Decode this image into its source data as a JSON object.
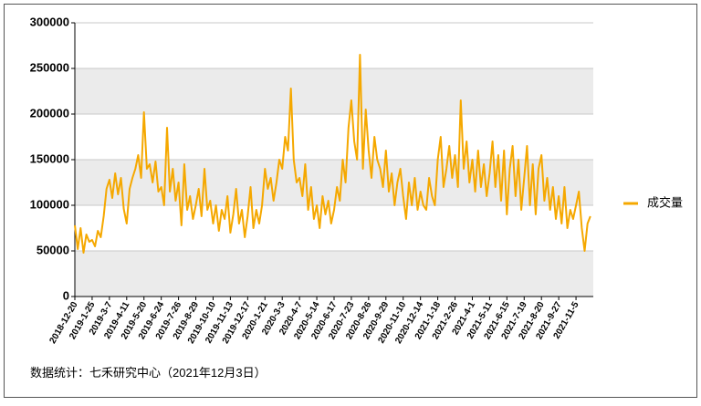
{
  "chart_data": {
    "type": "line",
    "categories": [
      "2018-12-20",
      null,
      null,
      null,
      null,
      null,
      "2019-1-25",
      null,
      null,
      null,
      null,
      null,
      "2019-3-7",
      null,
      null,
      null,
      null,
      null,
      "2019-4-11",
      null,
      null,
      null,
      null,
      null,
      "2019-5-20",
      null,
      null,
      null,
      null,
      null,
      "2019-6-24",
      null,
      null,
      null,
      null,
      null,
      "2019-7-26",
      null,
      null,
      null,
      null,
      null,
      "2019-8-29",
      null,
      null,
      null,
      null,
      null,
      "2019-10-10",
      null,
      null,
      null,
      null,
      null,
      "2019-11-13",
      null,
      null,
      null,
      null,
      null,
      "2019-12-17",
      null,
      null,
      null,
      null,
      null,
      "2020-1-21",
      null,
      null,
      null,
      null,
      null,
      "2020-3-3",
      null,
      null,
      null,
      null,
      null,
      "2020-4-7",
      null,
      null,
      null,
      null,
      null,
      "2020-5-14",
      null,
      null,
      null,
      null,
      null,
      "2020-6-17",
      null,
      null,
      null,
      null,
      null,
      "2020-7-23",
      null,
      null,
      null,
      null,
      null,
      "2020-8-26",
      null,
      null,
      null,
      null,
      null,
      "2020-9-29",
      null,
      null,
      null,
      null,
      null,
      "2020-11-10",
      null,
      null,
      null,
      null,
      null,
      "2020-12-14",
      null,
      null,
      null,
      null,
      null,
      "2021-1-18",
      null,
      null,
      null,
      null,
      null,
      "2021-2-26",
      null,
      null,
      null,
      null,
      null,
      "2021-4-1",
      null,
      null,
      null,
      null,
      null,
      "2021-5-11",
      null,
      null,
      null,
      null,
      null,
      "2021-6-15",
      null,
      null,
      null,
      null,
      null,
      "2021-7-19",
      null,
      null,
      null,
      null,
      null,
      "2021-8-20",
      null,
      null,
      null,
      null,
      null,
      "2021-9-27",
      null,
      null,
      null,
      null,
      null,
      "2021-11-5",
      null,
      null,
      null,
      null,
      null
    ],
    "series": [
      {
        "name": "成交量",
        "color": "#f5a800",
        "values": [
          78000,
          52000,
          75000,
          48000,
          68000,
          60000,
          62000,
          55000,
          72000,
          65000,
          88000,
          118000,
          128000,
          108000,
          135000,
          112000,
          130000,
          96000,
          80000,
          118000,
          130000,
          140000,
          155000,
          130000,
          202000,
          140000,
          145000,
          125000,
          148000,
          115000,
          120000,
          100000,
          185000,
          115000,
          140000,
          105000,
          125000,
          78000,
          145000,
          95000,
          110000,
          85000,
          100000,
          118000,
          88000,
          140000,
          95000,
          105000,
          80000,
          100000,
          72000,
          95000,
          85000,
          110000,
          70000,
          90000,
          118000,
          80000,
          95000,
          65000,
          88000,
          120000,
          75000,
          95000,
          80000,
          100000,
          140000,
          118000,
          130000,
          105000,
          125000,
          150000,
          140000,
          175000,
          160000,
          228000,
          150000,
          125000,
          130000,
          110000,
          145000,
          95000,
          120000,
          85000,
          100000,
          75000,
          110000,
          90000,
          105000,
          80000,
          95000,
          120000,
          105000,
          150000,
          125000,
          185000,
          215000,
          170000,
          150000,
          265000,
          140000,
          205000,
          160000,
          130000,
          175000,
          150000,
          140000,
          120000,
          160000,
          115000,
          135000,
          100000,
          125000,
          140000,
          110000,
          85000,
          125000,
          100000,
          130000,
          95000,
          115000,
          100000,
          95000,
          130000,
          110000,
          100000,
          150000,
          175000,
          120000,
          140000,
          165000,
          130000,
          155000,
          120000,
          215000,
          140000,
          170000,
          125000,
          150000,
          115000,
          160000,
          120000,
          145000,
          110000,
          135000,
          170000,
          120000,
          155000,
          105000,
          160000,
          90000,
          140000,
          165000,
          110000,
          150000,
          95000,
          130000,
          165000,
          100000,
          145000,
          90000,
          140000,
          155000,
          105000,
          130000,
          95000,
          120000,
          85000,
          110000,
          80000,
          120000,
          75000,
          95000,
          85000,
          100000,
          115000,
          75000,
          50000,
          80000,
          88000
        ]
      }
    ],
    "ylim": [
      0,
      300000
    ],
    "yticks": [
      0,
      50000,
      100000,
      150000,
      200000,
      250000,
      300000
    ],
    "grid": true,
    "legend": "right",
    "annotation": "数据统计：七禾研究中心（2021年12月3日）"
  }
}
